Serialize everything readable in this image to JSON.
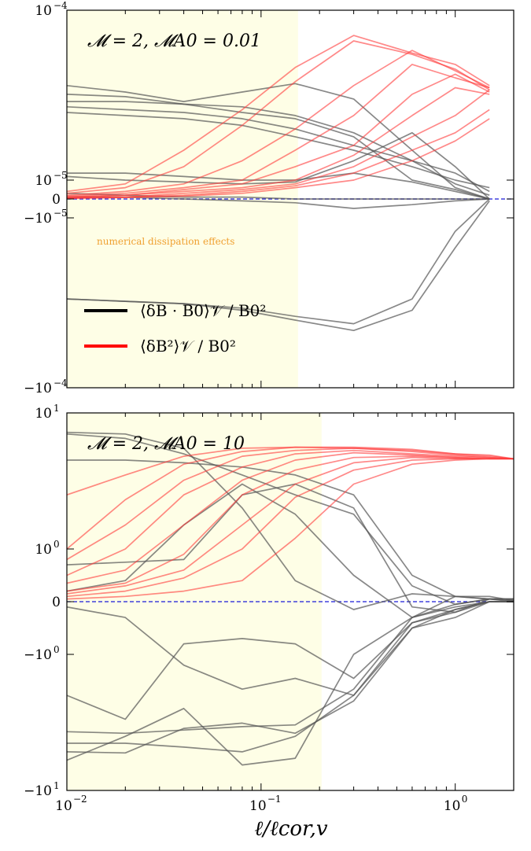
{
  "colors": {
    "shade": "#fefee6",
    "gray_series": "#555555",
    "red_series": "#ff3b3b",
    "zero_line": "#1a1ad8"
  },
  "xlabel": "ℓ/ℓcor,v",
  "x_ticks": [
    {
      "value": 0.01,
      "base": "10",
      "exp": "−2"
    },
    {
      "value": 0.1,
      "base": "10",
      "exp": "−1"
    },
    {
      "value": 1,
      "base": "10",
      "exp": "0"
    }
  ],
  "legend": {
    "black_label": "⟨δB · B0⟩𝒱 / B0²",
    "red_label": "⟨δB²⟩𝒱 / B0²"
  },
  "annotation": "numerical dissipation effects",
  "chart_data": [
    {
      "type": "line",
      "title": "𝓜 = 2,  𝓜A0 = 0.01",
      "xscale": "log",
      "yscale": "symlog",
      "xlim": [
        0.01,
        2.0
      ],
      "ylim": [
        -0.0001,
        0.0001
      ],
      "shaded_x_max": 0.155,
      "y_ticks": [
        {
          "value": 0.0001,
          "label": "10",
          "exp": "−4"
        },
        {
          "value": 1e-05,
          "label": "10",
          "exp": "−5"
        },
        {
          "value": 0,
          "label": "0",
          "exp": ""
        },
        {
          "value": -1e-05,
          "label": "−10",
          "exp": "−5"
        },
        {
          "value": -0.0001,
          "label": "−10",
          "exp": "−4"
        }
      ],
      "legend_position": "lower-left",
      "x": [
        0.01,
        0.02,
        0.04,
        0.08,
        0.15,
        0.3,
        0.6,
        1.0,
        1.5
      ],
      "series": [
        {
          "group": "black",
          "values": [
            3.6e-05,
            3.3e-05,
            2.9e-05,
            3.3e-05,
            3.7e-05,
            3e-05,
            1.5e-05,
            6e-06,
            0
          ]
        },
        {
          "group": "black",
          "values": [
            3.2e-05,
            3.1e-05,
            2.8e-05,
            2.7e-05,
            2.4e-05,
            1.9e-05,
            1.3e-05,
            1.1e-05,
            4e-06
          ]
        },
        {
          "group": "black",
          "values": [
            2.9e-05,
            2.9e-05,
            2.8e-05,
            2.5e-05,
            2.3e-05,
            1.8e-05,
            1e-05,
            5e-06,
            0
          ]
        },
        {
          "group": "black",
          "values": [
            2.7e-05,
            2.6e-05,
            2.5e-05,
            2.3e-05,
            2e-05,
            1.6e-05,
            1.3e-05,
            8e-06,
            2e-06
          ]
        },
        {
          "group": "black",
          "values": [
            2.5e-05,
            2.4e-05,
            2.3e-05,
            2.1e-05,
            1.8e-05,
            1.5e-05,
            1.2e-05,
            1e-05,
            6e-06
          ]
        },
        {
          "group": "black",
          "values": [
            1.1e-05,
            1.1e-05,
            1.05e-05,
            1e-05,
            1e-05,
            1.1e-05,
            9e-06,
            4e-06,
            0
          ]
        },
        {
          "group": "black",
          "values": [
            1.05e-05,
            1e-05,
            9e-06,
            8e-06,
            9e-06,
            1.3e-05,
            1.9e-05,
            1.2e-05,
            0
          ]
        },
        {
          "group": "black",
          "values": [
            3e-06,
            2e-06,
            1e-06,
            1e-06,
            0,
            0,
            0,
            0,
            0
          ]
        },
        {
          "group": "black",
          "values": [
            -3e-05,
            -3.1e-05,
            -3.2e-05,
            -3.4e-05,
            -3.8e-05,
            -4.2e-05,
            -3e-05,
            -1.2e-05,
            0
          ]
        },
        {
          "group": "black",
          "values": [
            -3e-05,
            -3.1e-05,
            -3.2e-05,
            -3.5e-05,
            -4e-05,
            -4.6e-05,
            -3.5e-05,
            -1.5e-05,
            -1e-06
          ]
        },
        {
          "group": "black",
          "values": [
            1e-06,
            1e-06,
            0,
            -1e-06,
            -2e-06,
            -5e-06,
            -3e-06,
            -1e-06,
            0
          ]
        },
        {
          "group": "red",
          "values": [
            4e-06,
            8e-06,
            1.5e-05,
            2.6e-05,
            4.6e-05,
            7.1e-05,
            5.6e-05,
            4.8e-05,
            3.6e-05
          ]
        },
        {
          "group": "red",
          "values": [
            3e-06,
            6e-06,
            1.2e-05,
            2.1e-05,
            3.8e-05,
            6.6e-05,
            5.5e-05,
            4.5e-05,
            3.4e-05
          ]
        },
        {
          "group": "red",
          "values": [
            2e-06,
            4e-06,
            8e-06,
            1.3e-05,
            2e-05,
            3.6e-05,
            5.8e-05,
            4.4e-05,
            3.5e-05
          ]
        },
        {
          "group": "red",
          "values": [
            1.5e-06,
            3e-06,
            6e-06,
            1e-05,
            1.5e-05,
            2.4e-05,
            4.8e-05,
            4e-05,
            3.5e-05
          ]
        },
        {
          "group": "red",
          "values": [
            1e-06,
            2e-06,
            5e-06,
            8e-06,
            1.2e-05,
            1.6e-05,
            3.2e-05,
            4.2e-05,
            3.3e-05
          ]
        },
        {
          "group": "red",
          "values": [
            1e-06,
            2e-06,
            4e-06,
            6e-06,
            1e-05,
            1.4e-05,
            2.4e-05,
            3.5e-05,
            3.2e-05
          ]
        },
        {
          "group": "red",
          "values": [
            5e-07,
            1e-06,
            3e-06,
            5e-06,
            8e-06,
            1.2e-05,
            1.8e-05,
            2.4e-05,
            3.4e-05
          ]
        },
        {
          "group": "red",
          "values": [
            5e-07,
            1e-06,
            2e-06,
            4e-06,
            7e-06,
            1.1e-05,
            1.5e-05,
            1.9e-05,
            2.6e-05
          ]
        },
        {
          "group": "red",
          "values": [
            3e-07,
            8e-07,
            1.5e-06,
            3e-06,
            6e-06,
            1e-05,
            1.3e-05,
            1.7e-05,
            2.3e-05
          ]
        }
      ]
    },
    {
      "type": "line",
      "title": "𝓜 = 2,  𝓜A0 = 10",
      "xscale": "log",
      "yscale": "symlog",
      "xlim": [
        0.01,
        2.0
      ],
      "ylim": [
        -10,
        10
      ],
      "shaded_x_max": 0.205,
      "y_ticks": [
        {
          "value": 10,
          "label": "10",
          "exp": "1"
        },
        {
          "value": 1,
          "label": "10",
          "exp": "0"
        },
        {
          "value": 0,
          "label": "0",
          "exp": ""
        },
        {
          "value": -1,
          "label": "−10",
          "exp": "0"
        },
        {
          "value": -10,
          "label": "−10",
          "exp": "1"
        }
      ],
      "x": [
        0.01,
        0.02,
        0.04,
        0.08,
        0.15,
        0.3,
        0.6,
        1.0,
        1.5,
        2.0
      ],
      "series": [
        {
          "group": "black",
          "values": [
            7.2,
            7.0,
            5.5,
            2.0,
            0.4,
            -0.15,
            0.15,
            0.1,
            0.05,
            0.05
          ]
        },
        {
          "group": "black",
          "values": [
            7.0,
            6.5,
            5.0,
            3.5,
            2.5,
            1.8,
            0.3,
            -0.05,
            0.05,
            0.0
          ]
        },
        {
          "group": "black",
          "values": [
            4.5,
            4.5,
            4.3,
            4.0,
            3.5,
            2.5,
            0.5,
            0.1,
            0.05,
            0.02
          ]
        },
        {
          "group": "black",
          "values": [
            0.7,
            0.75,
            0.8,
            2.5,
            3.0,
            2.0,
            -0.1,
            -0.2,
            0.05,
            0.05
          ]
        },
        {
          "group": "black",
          "values": [
            0.2,
            0.4,
            1.5,
            3.0,
            1.8,
            0.5,
            -0.3,
            0.1,
            0.1,
            0.02
          ]
        },
        {
          "group": "black",
          "values": [
            -0.1,
            -0.3,
            -1.2,
            -1.8,
            -1.5,
            -2.0,
            -0.5,
            -0.3,
            0.0,
            0.0
          ]
        },
        {
          "group": "black",
          "values": [
            -2.0,
            -3.0,
            -0.8,
            -0.7,
            -0.8,
            -1.5,
            -0.4,
            -0.2,
            0.0,
            0.0
          ]
        },
        {
          "group": "black",
          "values": [
            -3.7,
            -3.8,
            -3.6,
            -3.4,
            -3.3,
            -1.8,
            -0.3,
            -0.1,
            0.0,
            0.0
          ]
        },
        {
          "group": "black",
          "values": [
            -4.5,
            -4.5,
            -4.8,
            -5.2,
            -4.0,
            -2.0,
            -0.4,
            -0.15,
            0.0,
            0.0
          ]
        },
        {
          "group": "black",
          "values": [
            -5.2,
            -5.3,
            -3.5,
            -3.2,
            -3.8,
            -2.2,
            -0.5,
            -0.15,
            0.0,
            0.0
          ]
        },
        {
          "group": "black",
          "values": [
            -6.0,
            -4.0,
            -2.5,
            -6.5,
            -5.8,
            -1.0,
            -0.3,
            -0.05,
            0.05,
            0.05
          ]
        },
        {
          "group": "red",
          "values": [
            2.5,
            3.5,
            4.8,
            5.5,
            5.6,
            5.6,
            5.4,
            5.0,
            4.9,
            4.6
          ]
        },
        {
          "group": "red",
          "values": [
            1.0,
            2.3,
            4.2,
            5.2,
            5.6,
            5.5,
            5.3,
            5.0,
            4.8,
            4.6
          ]
        },
        {
          "group": "red",
          "values": [
            0.8,
            1.5,
            3.2,
            4.8,
            5.3,
            5.5,
            5.2,
            4.9,
            4.7,
            4.6
          ]
        },
        {
          "group": "red",
          "values": [
            0.5,
            1.0,
            2.5,
            4.0,
            5.0,
            5.3,
            5.0,
            4.8,
            4.7,
            4.6
          ]
        },
        {
          "group": "red",
          "values": [
            0.35,
            0.6,
            1.5,
            3.2,
            4.5,
            5.1,
            4.9,
            4.7,
            4.6,
            4.6
          ]
        },
        {
          "group": "red",
          "values": [
            0.2,
            0.35,
            0.9,
            2.5,
            3.8,
            4.7,
            4.8,
            4.7,
            4.6,
            4.6
          ]
        },
        {
          "group": "red",
          "values": [
            0.15,
            0.3,
            0.6,
            1.5,
            3.0,
            4.3,
            4.7,
            4.6,
            4.6,
            4.6
          ]
        },
        {
          "group": "red",
          "values": [
            0.1,
            0.2,
            0.45,
            1.0,
            2.4,
            3.8,
            4.5,
            4.6,
            4.6,
            4.6
          ]
        },
        {
          "group": "red",
          "values": [
            0.05,
            0.1,
            0.2,
            0.4,
            1.2,
            3.0,
            4.2,
            4.5,
            4.6,
            4.6
          ]
        }
      ]
    }
  ]
}
